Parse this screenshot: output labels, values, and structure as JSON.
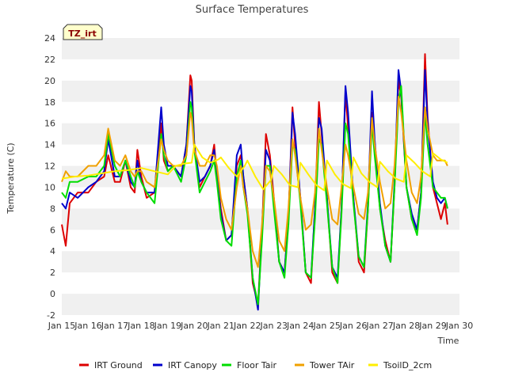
{
  "chart_data": {
    "type": "line",
    "title": "Surface Temperatures",
    "xlabel": "Time",
    "ylabel": "Temperature (C)",
    "tag": "TZ_irt",
    "xlim": [
      15,
      30
    ],
    "ylim": [
      -2,
      24
    ],
    "x_ticks": [
      {
        "v": 15,
        "label": "Jan 15"
      },
      {
        "v": 16,
        "label": "Jan 16"
      },
      {
        "v": 17,
        "label": "Jan 17"
      },
      {
        "v": 18,
        "label": "Jan 18"
      },
      {
        "v": 19,
        "label": "Jan 19"
      },
      {
        "v": 20,
        "label": "Jan 20"
      },
      {
        "v": 21,
        "label": "Jan 21"
      },
      {
        "v": 22,
        "label": "Jan 22"
      },
      {
        "v": 23,
        "label": "Jan 23"
      },
      {
        "v": 24,
        "label": "Jan 24"
      },
      {
        "v": 25,
        "label": "Jan 25"
      },
      {
        "v": 26,
        "label": "Jan 26"
      },
      {
        "v": 27,
        "label": "Jan 27"
      },
      {
        "v": 28,
        "label": "Jan 28"
      },
      {
        "v": 29,
        "label": "Jan 29"
      },
      {
        "v": 30,
        "label": "Jan 30"
      }
    ],
    "y_ticks": [
      "-2",
      "0",
      "2",
      "4",
      "6",
      "8",
      "10",
      "12",
      "14",
      "16",
      "18",
      "20",
      "22",
      "24"
    ],
    "grid": "horizontal bands",
    "legend_position": "bottom",
    "series": [
      {
        "name": "IRT Ground",
        "color": "#dd0000",
        "x": [
          15.0,
          15.15,
          15.3,
          15.6,
          16.0,
          16.3,
          16.6,
          16.75,
          17.0,
          17.2,
          17.4,
          17.6,
          17.75,
          17.85,
          18.0,
          18.2,
          18.5,
          18.75,
          18.85,
          19.0,
          19.2,
          19.5,
          19.7,
          19.85,
          19.9,
          20.0,
          20.2,
          20.4,
          20.6,
          20.75,
          20.85,
          21.0,
          21.2,
          21.4,
          21.6,
          21.75,
          21.85,
          22.0,
          22.2,
          22.4,
          22.55,
          22.7,
          22.85,
          23.0,
          23.2,
          23.4,
          23.55,
          23.7,
          23.8,
          24.0,
          24.2,
          24.4,
          24.55,
          24.7,
          24.8,
          25.0,
          25.2,
          25.4,
          25.55,
          25.7,
          25.8,
          26.0,
          26.2,
          26.4,
          26.55,
          26.7,
          26.8,
          27.0,
          27.2,
          27.4,
          27.55,
          27.7,
          27.8,
          28.0,
          28.2,
          28.4,
          28.55,
          28.7,
          28.8,
          29.0,
          29.15,
          29.3,
          29.45,
          29.55
        ],
        "y": [
          6.5,
          4.5,
          8.5,
          9.5,
          9.5,
          10.5,
          11.0,
          13.0,
          10.5,
          10.5,
          12.5,
          10.0,
          9.5,
          13.5,
          11.0,
          9.0,
          9.5,
          16.0,
          12.5,
          11.5,
          12.0,
          11.0,
          14.0,
          20.5,
          20.0,
          14.0,
          10.0,
          11.0,
          12.0,
          14.0,
          11.0,
          8.0,
          5.0,
          5.5,
          12.0,
          13.0,
          11.0,
          8.0,
          1.0,
          -1.0,
          6.0,
          15.0,
          13.0,
          9.0,
          3.0,
          2.0,
          7.0,
          17.5,
          14.0,
          9.0,
          2.0,
          1.0,
          8.0,
          18.0,
          15.0,
          9.0,
          2.0,
          1.0,
          8.0,
          19.0,
          15.5,
          9.0,
          3.0,
          2.0,
          8.0,
          17.0,
          14.0,
          8.0,
          5.0,
          3.0,
          10.0,
          20.0,
          18.5,
          10.0,
          7.0,
          6.0,
          9.5,
          22.5,
          16.5,
          10.0,
          8.5,
          7.0,
          8.5,
          6.5
        ]
      },
      {
        "name": "IRT Canopy",
        "color": "#0000cc",
        "x": [
          15.0,
          15.15,
          15.3,
          15.6,
          16.0,
          16.3,
          16.6,
          16.75,
          17.0,
          17.2,
          17.4,
          17.6,
          17.75,
          17.85,
          18.0,
          18.2,
          18.5,
          18.75,
          18.85,
          19.0,
          19.2,
          19.5,
          19.7,
          19.85,
          19.9,
          20.0,
          20.2,
          20.4,
          20.6,
          20.75,
          20.85,
          21.0,
          21.2,
          21.4,
          21.6,
          21.75,
          21.85,
          22.0,
          22.2,
          22.4,
          22.55,
          22.7,
          22.85,
          23.0,
          23.2,
          23.4,
          23.55,
          23.7,
          23.8,
          24.0,
          24.2,
          24.4,
          24.55,
          24.7,
          24.8,
          25.0,
          25.2,
          25.4,
          25.55,
          25.7,
          25.8,
          26.0,
          26.2,
          26.4,
          26.55,
          26.7,
          26.8,
          27.0,
          27.2,
          27.4,
          27.55,
          27.7,
          27.8,
          28.0,
          28.2,
          28.4,
          28.55,
          28.7,
          28.8,
          29.0,
          29.15,
          29.3,
          29.45,
          29.55
        ],
        "y": [
          8.5,
          8.0,
          9.5,
          9.0,
          10.0,
          10.5,
          11.5,
          14.5,
          11.0,
          11.0,
          12.5,
          10.5,
          10.0,
          12.5,
          10.5,
          9.5,
          9.5,
          17.5,
          14.0,
          12.0,
          12.0,
          11.0,
          14.0,
          19.5,
          19.0,
          14.0,
          10.5,
          11.0,
          12.0,
          13.5,
          11.0,
          7.5,
          5.0,
          5.5,
          13.0,
          14.0,
          11.0,
          8.0,
          1.5,
          -1.5,
          6.0,
          13.5,
          12.5,
          8.5,
          3.0,
          2.0,
          7.0,
          17.0,
          15.0,
          9.0,
          2.0,
          1.5,
          8.0,
          16.5,
          15.5,
          9.0,
          2.5,
          1.5,
          8.0,
          19.5,
          17.0,
          9.0,
          3.5,
          2.5,
          8.5,
          19.0,
          14.5,
          8.5,
          4.5,
          3.0,
          10.5,
          21.0,
          19.0,
          10.0,
          7.5,
          6.0,
          9.5,
          21.0,
          16.0,
          10.5,
          9.0,
          8.5,
          9.0,
          8.0
        ]
      },
      {
        "name": "Floor Tair",
        "color": "#00dd00",
        "x": [
          15.0,
          15.15,
          15.3,
          15.6,
          16.0,
          16.3,
          16.6,
          16.75,
          17.0,
          17.2,
          17.4,
          17.6,
          17.75,
          17.85,
          18.0,
          18.2,
          18.5,
          18.75,
          18.85,
          19.0,
          19.2,
          19.5,
          19.7,
          19.85,
          19.9,
          20.0,
          20.2,
          20.4,
          20.6,
          20.75,
          20.85,
          21.0,
          21.2,
          21.4,
          21.6,
          21.75,
          21.85,
          22.0,
          22.2,
          22.4,
          22.55,
          22.7,
          22.85,
          23.0,
          23.2,
          23.4,
          23.55,
          23.7,
          23.8,
          24.0,
          24.2,
          24.4,
          24.55,
          24.7,
          24.8,
          25.0,
          25.2,
          25.4,
          25.55,
          25.7,
          25.8,
          26.0,
          26.2,
          26.4,
          26.55,
          26.7,
          26.8,
          27.0,
          27.2,
          27.4,
          27.55,
          27.7,
          27.8,
          28.0,
          28.2,
          28.4,
          28.55,
          28.7,
          28.8,
          29.0,
          29.15,
          29.3,
          29.45,
          29.55
        ],
        "y": [
          9.5,
          9.0,
          10.5,
          10.5,
          11.0,
          11.0,
          12.0,
          15.0,
          12.0,
          11.0,
          12.5,
          11.0,
          10.0,
          11.5,
          10.5,
          9.5,
          8.5,
          15.0,
          13.0,
          11.5,
          12.0,
          10.5,
          13.0,
          18.0,
          17.5,
          13.5,
          9.5,
          10.5,
          11.5,
          12.5,
          10.5,
          7.0,
          5.0,
          4.5,
          11.0,
          12.5,
          10.0,
          7.5,
          1.5,
          -1.0,
          5.0,
          12.0,
          12.0,
          8.0,
          3.0,
          1.5,
          6.5,
          14.0,
          13.5,
          8.5,
          2.0,
          1.5,
          7.0,
          14.5,
          14.0,
          8.5,
          2.5,
          1.0,
          7.5,
          16.0,
          15.0,
          8.5,
          3.5,
          2.5,
          8.0,
          16.0,
          13.0,
          8.0,
          4.5,
          3.0,
          10.0,
          18.0,
          19.5,
          10.0,
          7.0,
          5.5,
          9.0,
          17.0,
          14.0,
          10.0,
          9.5,
          9.0,
          9.0,
          8.0
        ]
      },
      {
        "name": "Tower TAir",
        "color": "#f0a000",
        "x": [
          15.0,
          15.15,
          15.3,
          15.6,
          16.0,
          16.3,
          16.6,
          16.75,
          17.0,
          17.2,
          17.4,
          17.6,
          17.75,
          17.85,
          18.0,
          18.2,
          18.5,
          18.75,
          18.85,
          19.0,
          19.2,
          19.5,
          19.7,
          19.85,
          19.9,
          20.0,
          20.2,
          20.4,
          20.6,
          20.75,
          20.85,
          21.0,
          21.2,
          21.4,
          21.6,
          21.75,
          21.85,
          22.0,
          22.2,
          22.4,
          22.55,
          22.7,
          22.85,
          23.0,
          23.2,
          23.4,
          23.55,
          23.7,
          23.8,
          24.0,
          24.2,
          24.4,
          24.55,
          24.7,
          24.8,
          25.0,
          25.2,
          25.4,
          25.55,
          25.7,
          25.8,
          26.0,
          26.2,
          26.4,
          26.55,
          26.7,
          26.8,
          27.0,
          27.2,
          27.4,
          27.55,
          27.7,
          27.8,
          28.0,
          28.2,
          28.4,
          28.55,
          28.7,
          28.8,
          29.0,
          29.15,
          29.3,
          29.45,
          29.55
        ],
        "y": [
          10.5,
          11.5,
          11.0,
          11.0,
          12.0,
          12.0,
          13.0,
          15.5,
          12.5,
          12.0,
          13.0,
          11.5,
          11.0,
          11.5,
          11.5,
          10.5,
          10.0,
          14.5,
          13.5,
          12.5,
          12.0,
          12.0,
          13.0,
          17.0,
          16.5,
          13.5,
          12.0,
          12.0,
          13.0,
          13.0,
          12.0,
          9.0,
          7.0,
          6.0,
          10.0,
          12.0,
          10.0,
          8.0,
          4.0,
          2.5,
          6.5,
          12.0,
          11.5,
          9.0,
          5.0,
          4.0,
          8.0,
          14.5,
          13.0,
          9.0,
          6.0,
          6.5,
          9.5,
          15.5,
          13.5,
          10.0,
          7.0,
          6.5,
          10.0,
          14.0,
          13.0,
          10.0,
          7.5,
          7.0,
          9.5,
          16.5,
          14.0,
          10.5,
          8.0,
          8.5,
          12.0,
          18.5,
          17.0,
          12.5,
          9.5,
          8.5,
          11.0,
          17.5,
          15.5,
          13.0,
          12.5,
          12.5,
          12.5,
          12.0
        ]
      },
      {
        "name": "TsoilD_2cm",
        "color": "#ffee00",
        "x": [
          15.0,
          15.5,
          16.0,
          16.5,
          17.0,
          17.5,
          18.0,
          18.5,
          19.0,
          19.3,
          19.6,
          19.9,
          20.0,
          20.3,
          20.6,
          20.9,
          21.0,
          21.3,
          21.6,
          21.9,
          22.0,
          22.3,
          22.6,
          22.9,
          23.0,
          23.3,
          23.6,
          23.9,
          24.0,
          24.3,
          24.6,
          24.9,
          25.0,
          25.3,
          25.6,
          25.9,
          26.0,
          26.3,
          26.6,
          26.9,
          27.0,
          27.3,
          27.6,
          27.9,
          28.0,
          28.3,
          28.6,
          28.9,
          29.0,
          29.3,
          29.55
        ],
        "y": [
          10.8,
          11.0,
          11.1,
          11.3,
          11.5,
          11.6,
          11.8,
          11.5,
          11.2,
          12.0,
          12.2,
          12.3,
          14.0,
          12.8,
          12.3,
          12.6,
          12.8,
          11.8,
          11.0,
          12.0,
          12.5,
          11.0,
          9.8,
          10.7,
          12.0,
          11.2,
          10.2,
          10.0,
          12.3,
          11.2,
          10.2,
          9.7,
          12.5,
          11.2,
          10.3,
          9.9,
          12.8,
          11.3,
          10.5,
          10.0,
          12.4,
          11.5,
          10.8,
          10.5,
          13.0,
          12.3,
          11.5,
          11.0,
          13.2,
          12.6,
          12.3
        ]
      }
    ]
  }
}
